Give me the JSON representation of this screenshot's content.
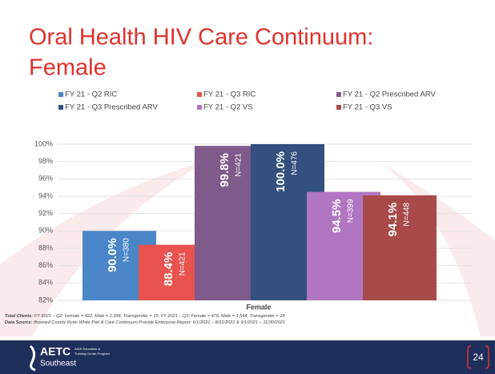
{
  "chart_data": {
    "type": "bar",
    "title_line1": "Oral Health HIV Care Continuum:",
    "title_line2": "Female",
    "x_label": "Female",
    "ylim": [
      82,
      100
    ],
    "yticks": [
      {
        "value": 82,
        "label": "82%"
      },
      {
        "value": 84,
        "label": "84%"
      },
      {
        "value": 86,
        "label": "86%"
      },
      {
        "value": 88,
        "label": "88%"
      },
      {
        "value": 90,
        "label": "90%"
      },
      {
        "value": 92,
        "label": "92%"
      },
      {
        "value": 94,
        "label": "94%"
      },
      {
        "value": 96,
        "label": "96%"
      },
      {
        "value": 98,
        "label": "98%"
      },
      {
        "value": 100,
        "label": "100%"
      }
    ],
    "grid": true,
    "series": [
      {
        "name": "FY 21 - Q2 RIC",
        "color": "#4a86c8",
        "values": [
          90.0
        ],
        "value_labels": [
          "90.0%"
        ],
        "n_labels": [
          "N=380"
        ]
      },
      {
        "name": "FY 21 - Q3 RIC",
        "color": "#e8534f",
        "values": [
          88.4
        ],
        "value_labels": [
          "88.4%"
        ],
        "n_labels": [
          "N=421"
        ]
      },
      {
        "name": "FY 21 - Q2 Prescribed ARV",
        "color": "#7f5a8a",
        "values": [
          99.8
        ],
        "value_labels": [
          "99.8%"
        ],
        "n_labels": [
          "N=421"
        ]
      },
      {
        "name": "FY 21 - Q3 Prescribed ARV",
        "color": "#33507e",
        "values": [
          100.0
        ],
        "value_labels": [
          "100.0%"
        ],
        "n_labels": [
          "N=476"
        ]
      },
      {
        "name": "FY 21 - Q2 VS",
        "color": "#b076c2",
        "values": [
          94.5
        ],
        "value_labels": [
          "94.5%"
        ],
        "n_labels": [
          "N=399"
        ]
      },
      {
        "name": "FY 21 - Q3 VS",
        "color": "#a84a4a",
        "values": [
          94.1
        ],
        "value_labels": [
          "94.1%"
        ],
        "n_labels": [
          "N=448"
        ]
      }
    ]
  },
  "footer": {
    "clients_label": "Total Clients:",
    "clients_text": "FY 2021 – Q2: Female = 422, Male = 1,398, Transgender = 15; FY 2021 – Q3: Female = 476, Male = 1,544, Transgender = 18",
    "source_label": "Data Source:",
    "source_text": "Broward County Ryan White Part A Care Continuum Provide Enterprise Report: 6/1/2021 – 8/31/2021 & 9/1/2021 – 11/30/2021",
    "logo": "AETC",
    "logo_sub1": "AIDS Education &",
    "logo_sub2": "Training Center Program",
    "logo_region": "Southeast",
    "page_number": "24"
  }
}
